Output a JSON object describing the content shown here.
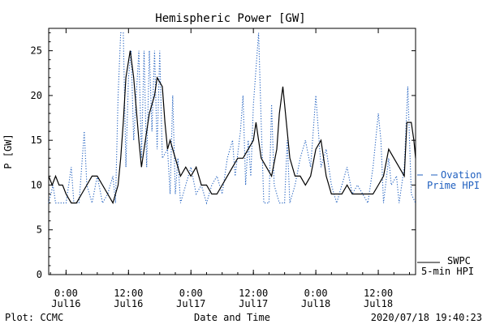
{
  "chart_data": {
    "type": "line",
    "title": "Hemispheric Power [GW]",
    "xlabel": "Date and Time",
    "ylabel": "P [GW]",
    "ylim": [
      0,
      27.5
    ],
    "xlim": [
      "2020-07-15T20:40",
      "2020-07-18T19:10"
    ],
    "yticks": [
      0,
      5,
      10,
      15,
      20,
      25
    ],
    "xticks": [
      {
        "t": "2020-07-16T00:00",
        "line1": "0:00",
        "line2": "Jul16"
      },
      {
        "t": "2020-07-16T12:00",
        "line1": "12:00",
        "line2": "Jul16"
      },
      {
        "t": "2020-07-17T00:00",
        "line1": "0:00",
        "line2": "Jul17"
      },
      {
        "t": "2020-07-17T12:00",
        "line1": "12:00",
        "line2": "Jul17"
      },
      {
        "t": "2020-07-18T00:00",
        "line1": "0:00",
        "line2": "Jul18"
      },
      {
        "t": "2020-07-18T12:00",
        "line1": "12:00",
        "line2": "Jul18"
      }
    ],
    "series": [
      {
        "name": "SWPC 5-min HPI",
        "color": "#000000",
        "style": "solid",
        "points": [
          [
            "2020-07-15T20:40",
            11
          ],
          [
            "2020-07-15T21:20",
            10
          ],
          [
            "2020-07-15T22:00",
            11
          ],
          [
            "2020-07-15T22:40",
            10
          ],
          [
            "2020-07-15T23:20",
            10
          ],
          [
            "2020-07-16T00:00",
            9
          ],
          [
            "2020-07-16T01:00",
            8
          ],
          [
            "2020-07-16T02:00",
            8
          ],
          [
            "2020-07-16T03:00",
            9
          ],
          [
            "2020-07-16T04:00",
            10
          ],
          [
            "2020-07-16T05:00",
            11
          ],
          [
            "2020-07-16T06:00",
            11
          ],
          [
            "2020-07-16T07:00",
            10
          ],
          [
            "2020-07-16T08:00",
            9
          ],
          [
            "2020-07-16T09:00",
            8
          ],
          [
            "2020-07-16T10:00",
            10
          ],
          [
            "2020-07-16T10:30",
            13
          ],
          [
            "2020-07-16T11:00",
            17
          ],
          [
            "2020-07-16T11:30",
            22
          ],
          [
            "2020-07-16T12:20",
            25
          ],
          [
            "2020-07-16T13:00",
            22
          ],
          [
            "2020-07-16T14:00",
            15
          ],
          [
            "2020-07-16T14:30",
            12
          ],
          [
            "2020-07-16T15:00",
            14
          ],
          [
            "2020-07-16T16:00",
            18
          ],
          [
            "2020-07-16T17:00",
            20
          ],
          [
            "2020-07-16T17:30",
            22
          ],
          [
            "2020-07-16T18:30",
            21
          ],
          [
            "2020-07-16T19:00",
            17
          ],
          [
            "2020-07-16T19:30",
            14
          ],
          [
            "2020-07-16T20:00",
            15
          ],
          [
            "2020-07-16T21:00",
            13
          ],
          [
            "2020-07-16T22:00",
            11
          ],
          [
            "2020-07-16T23:00",
            12
          ],
          [
            "2020-07-17T00:00",
            11
          ],
          [
            "2020-07-17T01:00",
            12
          ],
          [
            "2020-07-17T02:00",
            10
          ],
          [
            "2020-07-17T03:00",
            10
          ],
          [
            "2020-07-17T04:00",
            9
          ],
          [
            "2020-07-17T05:00",
            9
          ],
          [
            "2020-07-17T06:00",
            10
          ],
          [
            "2020-07-17T07:00",
            11
          ],
          [
            "2020-07-17T08:00",
            12
          ],
          [
            "2020-07-17T09:00",
            13
          ],
          [
            "2020-07-17T10:00",
            13
          ],
          [
            "2020-07-17T11:00",
            14
          ],
          [
            "2020-07-17T12:00",
            15
          ],
          [
            "2020-07-17T12:30",
            17
          ],
          [
            "2020-07-17T13:30",
            13
          ],
          [
            "2020-07-17T14:30",
            12
          ],
          [
            "2020-07-17T15:30",
            11
          ],
          [
            "2020-07-17T16:30",
            14
          ],
          [
            "2020-07-17T17:00",
            18
          ],
          [
            "2020-07-17T17:40",
            21
          ],
          [
            "2020-07-17T18:20",
            17
          ],
          [
            "2020-07-17T19:00",
            13
          ],
          [
            "2020-07-17T20:00",
            11
          ],
          [
            "2020-07-17T21:00",
            11
          ],
          [
            "2020-07-17T22:00",
            10
          ],
          [
            "2020-07-17T23:00",
            11
          ],
          [
            "2020-07-18T00:00",
            14
          ],
          [
            "2020-07-18T01:00",
            15
          ],
          [
            "2020-07-18T01:30",
            13
          ],
          [
            "2020-07-18T02:00",
            11
          ],
          [
            "2020-07-18T03:00",
            9
          ],
          [
            "2020-07-18T04:00",
            9
          ],
          [
            "2020-07-18T05:00",
            9
          ],
          [
            "2020-07-18T06:00",
            10
          ],
          [
            "2020-07-18T07:00",
            9
          ],
          [
            "2020-07-18T08:00",
            9
          ],
          [
            "2020-07-18T09:00",
            9
          ],
          [
            "2020-07-18T10:00",
            9
          ],
          [
            "2020-07-18T11:00",
            9
          ],
          [
            "2020-07-18T12:00",
            10
          ],
          [
            "2020-07-18T13:00",
            11
          ],
          [
            "2020-07-18T14:00",
            14
          ],
          [
            "2020-07-18T15:00",
            13
          ],
          [
            "2020-07-18T16:00",
            12
          ],
          [
            "2020-07-18T17:00",
            11
          ],
          [
            "2020-07-18T17:30",
            17
          ],
          [
            "2020-07-18T18:20",
            17
          ],
          [
            "2020-07-18T18:50",
            15
          ],
          [
            "2020-07-18T19:10",
            13
          ]
        ]
      },
      {
        "name": "Ovation Prime HPI",
        "color": "#1f5fbf",
        "style": "dotted",
        "points": [
          [
            "2020-07-15T20:40",
            8
          ],
          [
            "2020-07-15T21:30",
            10
          ],
          [
            "2020-07-15T22:00",
            8
          ],
          [
            "2020-07-15T23:00",
            8
          ],
          [
            "2020-07-16T00:00",
            8
          ],
          [
            "2020-07-16T01:00",
            12
          ],
          [
            "2020-07-16T01:30",
            8
          ],
          [
            "2020-07-16T02:30",
            8
          ],
          [
            "2020-07-16T03:30",
            16
          ],
          [
            "2020-07-16T04:00",
            10
          ],
          [
            "2020-07-16T05:00",
            8
          ],
          [
            "2020-07-16T06:00",
            11
          ],
          [
            "2020-07-16T07:00",
            8
          ],
          [
            "2020-07-16T08:00",
            9
          ],
          [
            "2020-07-16T09:00",
            11
          ],
          [
            "2020-07-16T09:30",
            8
          ],
          [
            "2020-07-16T10:00",
            20
          ],
          [
            "2020-07-16T10:30",
            27
          ],
          [
            "2020-07-16T11:00",
            27
          ],
          [
            "2020-07-16T11:30",
            12
          ],
          [
            "2020-07-16T12:00",
            22
          ],
          [
            "2020-07-16T12:30",
            25
          ],
          [
            "2020-07-16T13:00",
            15
          ],
          [
            "2020-07-16T14:00",
            25
          ],
          [
            "2020-07-16T14:30",
            13
          ],
          [
            "2020-07-16T15:00",
            25
          ],
          [
            "2020-07-16T15:30",
            12
          ],
          [
            "2020-07-16T16:00",
            25
          ],
          [
            "2020-07-16T16:30",
            16
          ],
          [
            "2020-07-16T17:00",
            25
          ],
          [
            "2020-07-16T17:30",
            14
          ],
          [
            "2020-07-16T18:00",
            25
          ],
          [
            "2020-07-16T18:30",
            13
          ],
          [
            "2020-07-16T19:30",
            14
          ],
          [
            "2020-07-16T20:00",
            9
          ],
          [
            "2020-07-16T20:30",
            20
          ],
          [
            "2020-07-16T21:00",
            9
          ],
          [
            "2020-07-16T21:30",
            13
          ],
          [
            "2020-07-16T22:00",
            8
          ],
          [
            "2020-07-16T23:00",
            10
          ],
          [
            "2020-07-17T00:00",
            12
          ],
          [
            "2020-07-17T01:00",
            9
          ],
          [
            "2020-07-17T02:00",
            10
          ],
          [
            "2020-07-17T03:00",
            8
          ],
          [
            "2020-07-17T04:00",
            10
          ],
          [
            "2020-07-17T05:00",
            11
          ],
          [
            "2020-07-17T06:00",
            9
          ],
          [
            "2020-07-17T07:00",
            13
          ],
          [
            "2020-07-17T08:00",
            15
          ],
          [
            "2020-07-17T08:30",
            11
          ],
          [
            "2020-07-17T09:30",
            16
          ],
          [
            "2020-07-17T10:00",
            20
          ],
          [
            "2020-07-17T10:30",
            10
          ],
          [
            "2020-07-17T11:00",
            15
          ],
          [
            "2020-07-17T11:30",
            11
          ],
          [
            "2020-07-17T12:00",
            19
          ],
          [
            "2020-07-17T13:00",
            27
          ],
          [
            "2020-07-17T13:30",
            17
          ],
          [
            "2020-07-17T14:00",
            8
          ],
          [
            "2020-07-17T15:00",
            8
          ],
          [
            "2020-07-17T15:30",
            19
          ],
          [
            "2020-07-17T16:00",
            10
          ],
          [
            "2020-07-17T17:00",
            8
          ],
          [
            "2020-07-17T18:00",
            8
          ],
          [
            "2020-07-17T18:30",
            15
          ],
          [
            "2020-07-17T19:00",
            8
          ],
          [
            "2020-07-17T20:00",
            10
          ],
          [
            "2020-07-17T21:00",
            13
          ],
          [
            "2020-07-17T22:00",
            15
          ],
          [
            "2020-07-17T23:00",
            12
          ],
          [
            "2020-07-18T00:00",
            20
          ],
          [
            "2020-07-18T00:30",
            16
          ],
          [
            "2020-07-18T01:00",
            12
          ],
          [
            "2020-07-18T02:00",
            14
          ],
          [
            "2020-07-18T03:00",
            10
          ],
          [
            "2020-07-18T04:00",
            8
          ],
          [
            "2020-07-18T05:00",
            10
          ],
          [
            "2020-07-18T06:00",
            12
          ],
          [
            "2020-07-18T07:00",
            9
          ],
          [
            "2020-07-18T08:00",
            10
          ],
          [
            "2020-07-18T09:00",
            9
          ],
          [
            "2020-07-18T10:00",
            8
          ],
          [
            "2020-07-18T11:00",
            12
          ],
          [
            "2020-07-18T12:00",
            18
          ],
          [
            "2020-07-18T12:30",
            15
          ],
          [
            "2020-07-18T13:00",
            8
          ],
          [
            "2020-07-18T14:00",
            13
          ],
          [
            "2020-07-18T14:30",
            10
          ],
          [
            "2020-07-18T15:30",
            11
          ],
          [
            "2020-07-18T16:00",
            8
          ],
          [
            "2020-07-18T17:00",
            12
          ],
          [
            "2020-07-18T17:40",
            21
          ],
          [
            "2020-07-18T18:20",
            9
          ],
          [
            "2020-07-18T19:10",
            8
          ]
        ]
      }
    ],
    "legend": {
      "placement": "right",
      "ovation_line1": "Ovation",
      "ovation_line2": "Prime HPI",
      "swpc_line1": "SWPC",
      "swpc_line2": "5-min HPI"
    }
  },
  "footer": {
    "plot_source": "Plot: CCMC",
    "timestamp": "2020/07/18 19:40:23"
  }
}
